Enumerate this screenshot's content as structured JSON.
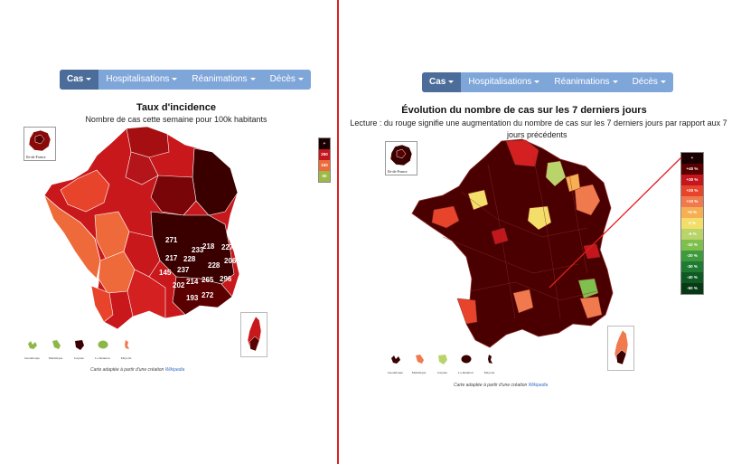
{
  "nav": {
    "items": [
      {
        "label": "Cas",
        "active": true
      },
      {
        "label": "Hospitalisations",
        "active": false
      },
      {
        "label": "Réanimations",
        "active": false
      },
      {
        "label": "Décès",
        "active": false
      }
    ]
  },
  "left_panel": {
    "title": "Taux d'incidence",
    "subtitle": "Nombre de cas cette semaine pour 100k habitants",
    "inset_label": "Ile-de-France",
    "legend": [
      {
        "label": "+",
        "color": "#1a0000"
      },
      {
        "label": "250",
        "color": "#c4161c"
      },
      {
        "label": "150",
        "color": "#ef6a3a"
      },
      {
        "label": "50",
        "color": "#9bbb45"
      }
    ],
    "values": [
      "271",
      "217",
      "145",
      "237",
      "228",
      "202",
      "214",
      "193",
      "233",
      "218",
      "227",
      "206",
      "228",
      "265",
      "296",
      "272"
    ],
    "overseas": [
      {
        "label": "Guadeloupe",
        "color": "#8db848"
      },
      {
        "label": "Martinique",
        "color": "#8db848"
      },
      {
        "label": "Guyane",
        "color": "#3a0000"
      },
      {
        "label": "La Réunion",
        "color": "#8db848"
      },
      {
        "label": "Mayotte",
        "color": "#f07a4e"
      }
    ],
    "credit_text": "Carte adaptée à partir d'une création",
    "credit_link": "Wikipedia"
  },
  "right_panel": {
    "title": "Évolution du nombre de cas sur les 7 derniers jours",
    "subtitle_line1": "Lecture : du rouge signifie une augmentation du nombre de cas sur les 7 derniers jours par rapport aux 7",
    "subtitle_line2": "jours précédents",
    "inset_label": "Ile-de-France",
    "legend": [
      {
        "label": "+",
        "color": "#1a0000"
      },
      {
        "label": "+40 %",
        "color": "#5a0000"
      },
      {
        "label": "+30 %",
        "color": "#c4161c"
      },
      {
        "label": "+20 %",
        "color": "#e8442b"
      },
      {
        "label": "+10 %",
        "color": "#f07a4e"
      },
      {
        "label": "+5 %",
        "color": "#f6b053"
      },
      {
        "label": "0 %",
        "color": "#f3de6a"
      },
      {
        "label": "-5 %",
        "color": "#b9d46a"
      },
      {
        "label": "-10 %",
        "color": "#7fbf4e"
      },
      {
        "label": "-20 %",
        "color": "#3f9a3d"
      },
      {
        "label": "-30 %",
        "color": "#1f7a32"
      },
      {
        "label": "-40 %",
        "color": "#0f5a22"
      },
      {
        "label": "-50 %",
        "color": "#073a14"
      }
    ],
    "overseas": [
      {
        "label": "Guadeloupe",
        "color": "#3a0000"
      },
      {
        "label": "Martinique",
        "color": "#f07a4e"
      },
      {
        "label": "Guyane",
        "color": "#b9d46a"
      },
      {
        "label": "La Réunion",
        "color": "#3a0000"
      },
      {
        "label": "Mayotte",
        "color": "#3a0000"
      }
    ],
    "credit_text": "Carte adaptée à partir d'une création",
    "credit_link": "Wikipedia"
  },
  "colors": {
    "nav_bg": "#7fa6d9",
    "nav_active": "#4c6d99",
    "divider": "#e0201f",
    "annotation_arrow": "#e0201f"
  }
}
